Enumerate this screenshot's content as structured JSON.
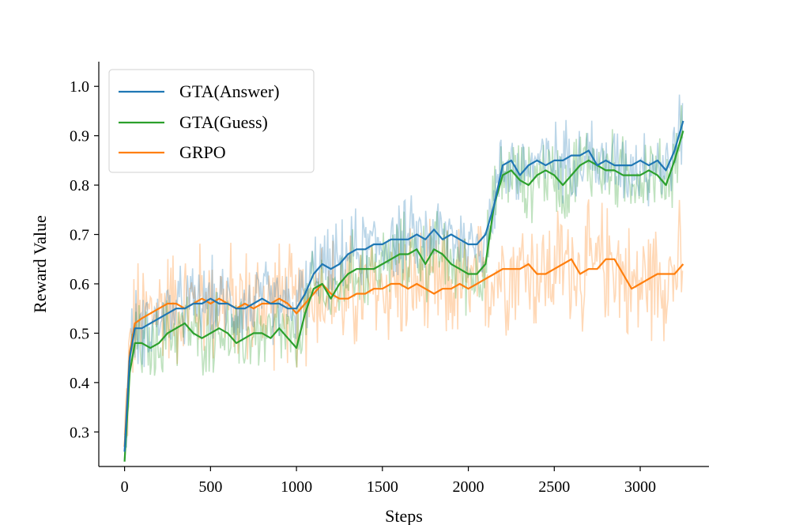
{
  "chart_data": {
    "type": "line",
    "title": "",
    "xlabel": "Steps",
    "ylabel": "Reward Value",
    "xlim": [
      -150,
      3400
    ],
    "ylim": [
      0.23,
      1.05
    ],
    "xticks": [
      0,
      500,
      1000,
      1500,
      2000,
      2500,
      3000
    ],
    "yticks": [
      0.3,
      0.4,
      0.5,
      0.6,
      0.7,
      0.8,
      0.9,
      1.0
    ],
    "xtick_labels": [
      "0",
      "500",
      "1000",
      "1500",
      "2000",
      "2500",
      "3000"
    ],
    "ytick_labels": [
      "0.3",
      "0.4",
      "0.5",
      "0.6",
      "0.7",
      "0.8",
      "0.9",
      "1.0"
    ],
    "grid": false,
    "legend_position": "top-left",
    "raw_noise_alpha": 0.3,
    "series": [
      {
        "name": "GTA(Answer)",
        "color": "#1f77b4",
        "x": [
          0,
          30,
          60,
          100,
          150,
          200,
          250,
          300,
          350,
          400,
          450,
          500,
          550,
          600,
          650,
          700,
          750,
          800,
          850,
          900,
          950,
          1000,
          1050,
          1100,
          1150,
          1200,
          1250,
          1300,
          1350,
          1400,
          1450,
          1500,
          1550,
          1600,
          1650,
          1700,
          1750,
          1800,
          1850,
          1900,
          1950,
          2000,
          2050,
          2100,
          2150,
          2200,
          2250,
          2300,
          2350,
          2400,
          2450,
          2500,
          2550,
          2600,
          2650,
          2700,
          2750,
          2800,
          2850,
          2900,
          2950,
          3000,
          3050,
          3100,
          3150,
          3200,
          3250
        ],
        "y": [
          0.26,
          0.45,
          0.51,
          0.51,
          0.52,
          0.53,
          0.54,
          0.55,
          0.55,
          0.56,
          0.56,
          0.57,
          0.56,
          0.56,
          0.55,
          0.55,
          0.56,
          0.57,
          0.56,
          0.56,
          0.55,
          0.55,
          0.58,
          0.62,
          0.64,
          0.63,
          0.64,
          0.66,
          0.67,
          0.67,
          0.68,
          0.68,
          0.69,
          0.69,
          0.69,
          0.7,
          0.69,
          0.71,
          0.69,
          0.7,
          0.69,
          0.68,
          0.68,
          0.7,
          0.76,
          0.84,
          0.85,
          0.82,
          0.84,
          0.85,
          0.84,
          0.85,
          0.85,
          0.86,
          0.86,
          0.87,
          0.84,
          0.85,
          0.84,
          0.84,
          0.84,
          0.85,
          0.84,
          0.85,
          0.83,
          0.87,
          0.93
        ]
      },
      {
        "name": "GTA(Guess)",
        "color": "#2ca02c",
        "x": [
          0,
          30,
          60,
          100,
          150,
          200,
          250,
          300,
          350,
          400,
          450,
          500,
          550,
          600,
          650,
          700,
          750,
          800,
          850,
          900,
          950,
          1000,
          1050,
          1100,
          1150,
          1200,
          1250,
          1300,
          1350,
          1400,
          1450,
          1500,
          1550,
          1600,
          1650,
          1700,
          1750,
          1800,
          1850,
          1900,
          1950,
          2000,
          2050,
          2100,
          2150,
          2200,
          2250,
          2300,
          2350,
          2400,
          2450,
          2500,
          2550,
          2600,
          2650,
          2700,
          2750,
          2800,
          2850,
          2900,
          2950,
          3000,
          3050,
          3100,
          3150,
          3200,
          3250
        ],
        "y": [
          0.24,
          0.42,
          0.48,
          0.48,
          0.47,
          0.48,
          0.5,
          0.51,
          0.52,
          0.5,
          0.49,
          0.5,
          0.51,
          0.5,
          0.48,
          0.49,
          0.5,
          0.5,
          0.49,
          0.51,
          0.49,
          0.47,
          0.54,
          0.59,
          0.6,
          0.57,
          0.6,
          0.62,
          0.63,
          0.63,
          0.63,
          0.64,
          0.65,
          0.66,
          0.66,
          0.67,
          0.64,
          0.67,
          0.66,
          0.64,
          0.63,
          0.62,
          0.62,
          0.64,
          0.76,
          0.82,
          0.83,
          0.81,
          0.8,
          0.82,
          0.83,
          0.82,
          0.8,
          0.82,
          0.84,
          0.85,
          0.84,
          0.83,
          0.83,
          0.82,
          0.82,
          0.82,
          0.83,
          0.82,
          0.8,
          0.85,
          0.91
        ]
      },
      {
        "name": "GRPO",
        "color": "#ff7f0e",
        "x": [
          0,
          30,
          60,
          100,
          150,
          200,
          250,
          300,
          350,
          400,
          450,
          500,
          550,
          600,
          650,
          700,
          750,
          800,
          850,
          900,
          950,
          1000,
          1050,
          1100,
          1150,
          1200,
          1250,
          1300,
          1350,
          1400,
          1450,
          1500,
          1550,
          1600,
          1650,
          1700,
          1750,
          1800,
          1850,
          1900,
          1950,
          2000,
          2050,
          2100,
          2150,
          2200,
          2250,
          2300,
          2350,
          2400,
          2450,
          2500,
          2550,
          2600,
          2650,
          2700,
          2750,
          2800,
          2850,
          2900,
          2950,
          3000,
          3050,
          3100,
          3150,
          3200,
          3250
        ],
        "y": [
          0.27,
          0.46,
          0.52,
          0.53,
          0.54,
          0.55,
          0.56,
          0.56,
          0.55,
          0.56,
          0.57,
          0.56,
          0.57,
          0.56,
          0.55,
          0.56,
          0.55,
          0.56,
          0.56,
          0.57,
          0.56,
          0.54,
          0.56,
          0.58,
          0.6,
          0.58,
          0.57,
          0.57,
          0.58,
          0.58,
          0.59,
          0.59,
          0.6,
          0.6,
          0.59,
          0.6,
          0.59,
          0.58,
          0.59,
          0.59,
          0.6,
          0.59,
          0.6,
          0.61,
          0.62,
          0.63,
          0.63,
          0.63,
          0.64,
          0.62,
          0.62,
          0.63,
          0.64,
          0.65,
          0.62,
          0.63,
          0.63,
          0.65,
          0.65,
          0.62,
          0.59,
          0.6,
          0.61,
          0.62,
          0.62,
          0.62,
          0.64
        ]
      }
    ]
  }
}
